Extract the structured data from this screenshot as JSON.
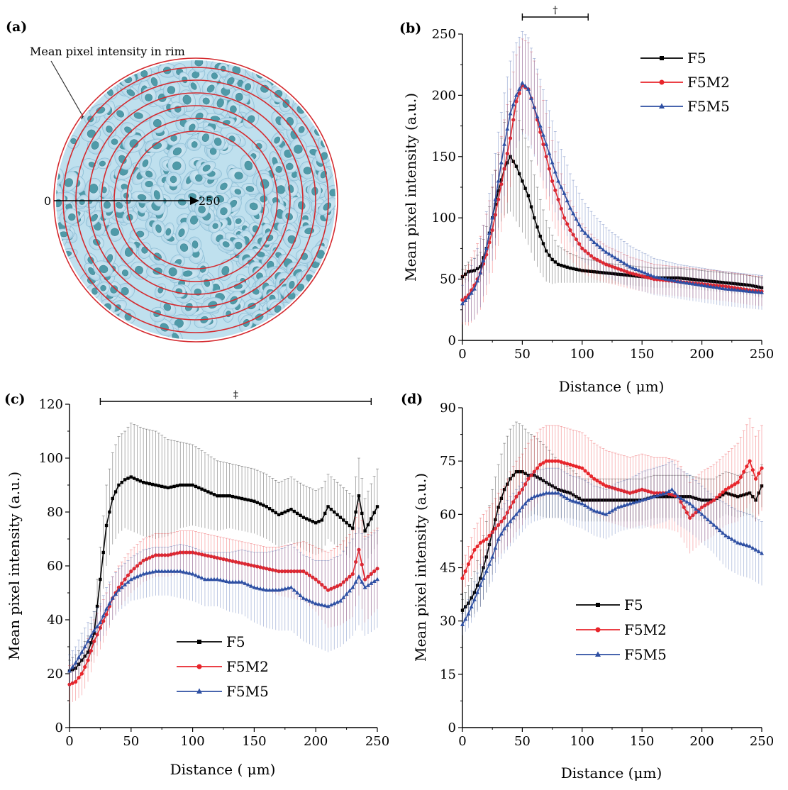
{
  "panel_a": {
    "label": "(a)",
    "annotation": "Mean pixel intensity in rim",
    "scale_start": "0",
    "scale_end": "250"
  },
  "chart_data": [
    {
      "panel": "(b)",
      "type": "line",
      "xlabel": "Distance ( μm)",
      "ylabel": "Mean pixel intensity (a.u.)",
      "xlim": [
        0,
        250
      ],
      "ylim": [
        0,
        250
      ],
      "xticks": [
        0,
        50,
        100,
        150,
        200,
        250
      ],
      "yticks": [
        0,
        50,
        100,
        150,
        200,
        250
      ],
      "significance": {
        "symbol": "†",
        "x_start": 50,
        "x_end": 105
      },
      "legend": "top-right",
      "series": [
        {
          "name": "F5",
          "color": "#000000",
          "marker": "square",
          "x": [
            0,
            5,
            10,
            15,
            20,
            25,
            30,
            35,
            40,
            45,
            50,
            55,
            60,
            65,
            70,
            75,
            80,
            90,
            100,
            120,
            140,
            160,
            180,
            200,
            220,
            240,
            250
          ],
          "y": [
            52,
            56,
            57,
            60,
            75,
            100,
            122,
            140,
            150,
            142,
            130,
            118,
            100,
            85,
            73,
            66,
            62,
            59,
            57,
            55,
            53,
            51,
            51,
            49,
            47,
            45,
            43
          ],
          "err": [
            6,
            8,
            10,
            12,
            18,
            25,
            30,
            38,
            45,
            45,
            42,
            40,
            35,
            30,
            25,
            20,
            15,
            12,
            10,
            8,
            8,
            8,
            8,
            8,
            8,
            8,
            8
          ]
        },
        {
          "name": "F5M2",
          "color": "#e8252b",
          "marker": "circle",
          "x": [
            0,
            5,
            10,
            15,
            20,
            25,
            30,
            35,
            40,
            45,
            50,
            55,
            60,
            65,
            70,
            75,
            80,
            85,
            90,
            100,
            110,
            120,
            140,
            160,
            180,
            200,
            220,
            240,
            250
          ],
          "y": [
            33,
            37,
            45,
            55,
            70,
            90,
            115,
            140,
            165,
            195,
            208,
            205,
            190,
            170,
            150,
            130,
            115,
            100,
            90,
            75,
            67,
            62,
            55,
            50,
            48,
            46,
            44,
            41,
            40
          ],
          "err": [
            20,
            25,
            28,
            30,
            33,
            35,
            38,
            40,
            40,
            38,
            38,
            38,
            38,
            37,
            35,
            33,
            30,
            27,
            24,
            20,
            17,
            15,
            13,
            12,
            12,
            12,
            12,
            12,
            12
          ]
        },
        {
          "name": "F5M5",
          "color": "#2e4fa3",
          "marker": "triangle",
          "x": [
            0,
            5,
            10,
            15,
            20,
            25,
            30,
            35,
            40,
            45,
            50,
            55,
            60,
            65,
            70,
            75,
            80,
            85,
            90,
            100,
            110,
            120,
            140,
            160,
            180,
            200,
            220,
            240,
            250
          ],
          "y": [
            30,
            35,
            42,
            55,
            75,
            100,
            130,
            160,
            185,
            200,
            210,
            205,
            190,
            175,
            160,
            145,
            130,
            120,
            108,
            90,
            80,
            72,
            60,
            52,
            48,
            45,
            42,
            40,
            39
          ],
          "err": [
            15,
            20,
            25,
            28,
            30,
            35,
            40,
            42,
            43,
            43,
            42,
            42,
            40,
            38,
            36,
            34,
            32,
            30,
            28,
            25,
            22,
            20,
            17,
            15,
            14,
            14,
            14,
            14,
            14
          ]
        }
      ]
    },
    {
      "panel": "(c)",
      "type": "line",
      "xlabel": "Distance ( μm)",
      "ylabel": "Mean pixel intensity (a.u.)",
      "xlim": [
        0,
        250
      ],
      "ylim": [
        0,
        120
      ],
      "xticks": [
        0,
        50,
        100,
        150,
        200,
        250
      ],
      "yticks": [
        0,
        20,
        40,
        60,
        80,
        100,
        120
      ],
      "significance": {
        "symbol": "‡",
        "x_start": 25,
        "x_end": 245
      },
      "legend": "bottom-center",
      "series": [
        {
          "name": "F5",
          "color": "#000000",
          "marker": "square",
          "x": [
            0,
            5,
            10,
            15,
            20,
            25,
            30,
            35,
            40,
            45,
            50,
            60,
            70,
            80,
            90,
            100,
            110,
            120,
            130,
            140,
            150,
            160,
            170,
            180,
            190,
            200,
            205,
            210,
            220,
            230,
            235,
            240,
            250
          ],
          "y": [
            21,
            22,
            25,
            28,
            35,
            55,
            75,
            85,
            90,
            92,
            93,
            91,
            90,
            89,
            90,
            90,
            88,
            86,
            86,
            85,
            84,
            82,
            79,
            81,
            78,
            76,
            77,
            82,
            78,
            74,
            86,
            73,
            82
          ],
          "err": [
            4,
            5,
            5,
            6,
            8,
            12,
            15,
            17,
            18,
            18,
            20,
            20,
            20,
            18,
            16,
            15,
            14,
            13,
            12,
            12,
            12,
            12,
            12,
            12,
            12,
            12,
            12,
            12,
            12,
            12,
            14,
            12,
            14
          ]
        },
        {
          "name": "F5M2",
          "color": "#e8252b",
          "marker": "circle",
          "x": [
            0,
            5,
            10,
            15,
            20,
            25,
            30,
            35,
            40,
            45,
            50,
            60,
            70,
            80,
            90,
            100,
            110,
            120,
            130,
            140,
            150,
            160,
            170,
            180,
            190,
            200,
            210,
            220,
            230,
            235,
            240,
            250
          ],
          "y": [
            16,
            17,
            20,
            25,
            32,
            37,
            42,
            48,
            52,
            55,
            58,
            62,
            64,
            64,
            65,
            65,
            64,
            63,
            62,
            61,
            60,
            59,
            58,
            58,
            58,
            55,
            51,
            53,
            57,
            66,
            55,
            59
          ],
          "err": [
            7,
            7,
            8,
            8,
            8,
            8,
            8,
            8,
            8,
            8,
            8,
            8,
            8,
            8,
            8,
            8,
            8,
            8,
            8,
            8,
            8,
            8,
            9,
            10,
            11,
            12,
            14,
            15,
            16,
            17,
            16,
            15
          ]
        },
        {
          "name": "F5M5",
          "color": "#2e4fa3",
          "marker": "triangle",
          "x": [
            0,
            5,
            10,
            15,
            20,
            25,
            30,
            35,
            40,
            45,
            50,
            60,
            70,
            80,
            90,
            100,
            110,
            120,
            130,
            140,
            150,
            160,
            170,
            180,
            190,
            200,
            210,
            220,
            230,
            235,
            240,
            250
          ],
          "y": [
            21,
            24,
            28,
            32,
            36,
            39,
            44,
            48,
            51,
            53,
            55,
            57,
            58,
            58,
            58,
            57,
            55,
            55,
            54,
            54,
            52,
            51,
            51,
            52,
            48,
            46,
            45,
            47,
            52,
            56,
            52,
            55
          ],
          "err": [
            6,
            6,
            7,
            7,
            7,
            7,
            8,
            8,
            8,
            8,
            8,
            9,
            9,
            9,
            10,
            10,
            10,
            10,
            11,
            12,
            13,
            14,
            15,
            16,
            16,
            16,
            17,
            17,
            18,
            18,
            18,
            18
          ]
        }
      ]
    },
    {
      "panel": "(d)",
      "type": "line",
      "xlabel": "Distance (μm)",
      "ylabel": "Mean pixel intensity (a.u.)",
      "xlim": [
        0,
        250
      ],
      "ylim": [
        0,
        90
      ],
      "xticks": [
        0,
        50,
        100,
        150,
        200,
        250
      ],
      "yticks": [
        0,
        15,
        30,
        45,
        60,
        75,
        90
      ],
      "legend": "center",
      "series": [
        {
          "name": "F5",
          "color": "#000000",
          "marker": "square",
          "x": [
            0,
            5,
            10,
            15,
            20,
            25,
            30,
            35,
            40,
            45,
            50,
            55,
            60,
            70,
            80,
            90,
            100,
            110,
            120,
            130,
            140,
            150,
            160,
            170,
            180,
            190,
            200,
            210,
            220,
            230,
            240,
            245,
            250
          ],
          "y": [
            33,
            35,
            38,
            42,
            48,
            55,
            62,
            67,
            70,
            72,
            72,
            71,
            71,
            69,
            67,
            66,
            64,
            64,
            64,
            64,
            64,
            64,
            65,
            65,
            65,
            65,
            64,
            64,
            66,
            65,
            66,
            64,
            68
          ],
          "err": [
            3,
            5,
            6,
            8,
            10,
            12,
            12,
            13,
            14,
            14,
            13,
            12,
            11,
            10,
            8,
            7,
            6,
            6,
            6,
            6,
            6,
            6,
            6,
            6,
            6,
            6,
            6,
            6,
            6,
            6,
            6,
            6,
            6
          ]
        },
        {
          "name": "F5M2",
          "color": "#e8252b",
          "marker": "circle",
          "x": [
            0,
            5,
            10,
            15,
            20,
            25,
            30,
            35,
            40,
            45,
            50,
            55,
            60,
            65,
            70,
            80,
            90,
            100,
            110,
            120,
            130,
            140,
            150,
            160,
            170,
            180,
            185,
            190,
            200,
            210,
            220,
            230,
            240,
            245,
            250
          ],
          "y": [
            42,
            46,
            50,
            52,
            53,
            55,
            57,
            59,
            62,
            65,
            67,
            70,
            72,
            74,
            75,
            75,
            74,
            73,
            70,
            68,
            67,
            66,
            67,
            66,
            66,
            65,
            62,
            59,
            62,
            64,
            67,
            69,
            75,
            70,
            73
          ],
          "err": [
            4,
            5,
            6,
            7,
            8,
            8,
            9,
            9,
            10,
            10,
            10,
            10,
            10,
            10,
            10,
            10,
            10,
            10,
            10,
            10,
            10,
            10,
            10,
            10,
            10,
            10,
            10,
            10,
            10,
            10,
            10,
            11,
            12,
            12,
            12
          ]
        },
        {
          "name": "F5M5",
          "color": "#2e4fa3",
          "marker": "triangle",
          "x": [
            0,
            5,
            10,
            15,
            20,
            25,
            30,
            35,
            40,
            45,
            50,
            55,
            60,
            70,
            80,
            90,
            100,
            110,
            120,
            130,
            140,
            150,
            160,
            170,
            175,
            180,
            190,
            200,
            210,
            220,
            230,
            240,
            250
          ],
          "y": [
            29,
            32,
            36,
            40,
            44,
            48,
            53,
            56,
            58,
            60,
            62,
            64,
            65,
            66,
            66,
            64,
            63,
            61,
            60,
            62,
            63,
            64,
            65,
            66,
            67,
            65,
            63,
            60,
            57,
            54,
            52,
            51,
            49
          ],
          "err": [
            3,
            4,
            5,
            6,
            6,
            7,
            7,
            7,
            7,
            7,
            7,
            7,
            7,
            7,
            7,
            7,
            7,
            7,
            7,
            7,
            7,
            8,
            8,
            8,
            8,
            8,
            8,
            8,
            8,
            9,
            9,
            9,
            9
          ]
        }
      ]
    }
  ]
}
